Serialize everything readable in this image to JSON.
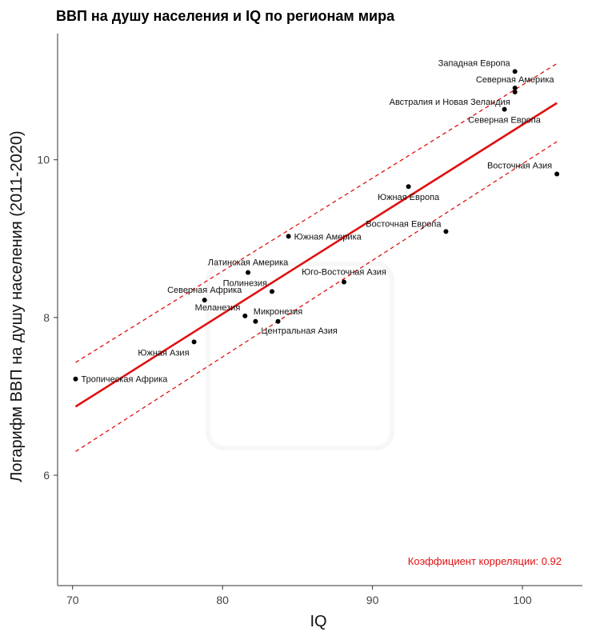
{
  "chart_data": {
    "type": "scatter",
    "title": "ВВП на душу населения и IQ по регионам мира",
    "xlabel": "IQ",
    "ylabel": "Логарифм ВВП на душу населения (2011-2020)",
    "xlim": [
      69,
      104
    ],
    "ylim": [
      4.6,
      11.6
    ],
    "x_ticks": [
      70,
      80,
      90,
      100
    ],
    "y_ticks": [
      6,
      8,
      10
    ],
    "grid": false,
    "points": [
      {
        "label": "Тропическая Африка",
        "x": 70.2,
        "y": 7.22,
        "anchor": "start"
      },
      {
        "label": "Южная Азия",
        "x": 78.1,
        "y": 7.69,
        "anchor": "end"
      },
      {
        "label": "Северная Африка",
        "x": 78.8,
        "y": 8.22,
        "anchor": "middle"
      },
      {
        "label": "Меланезия",
        "x": 81.5,
        "y": 8.02,
        "anchor": "end"
      },
      {
        "label": "Центральная Азия",
        "x": 82.2,
        "y": 7.95,
        "anchor": "start"
      },
      {
        "label": "Латинская Америка",
        "x": 81.7,
        "y": 8.57,
        "anchor": "middle"
      },
      {
        "label": "Полинезия",
        "x": 83.3,
        "y": 8.33,
        "anchor": "end"
      },
      {
        "label": "Микронезия",
        "x": 83.7,
        "y": 7.95,
        "anchor": "middle"
      },
      {
        "label": "Южная Америка",
        "x": 84.4,
        "y": 9.03,
        "anchor": "start"
      },
      {
        "label": "Юго-Восточная Азия",
        "x": 88.1,
        "y": 8.45,
        "anchor": "middle"
      },
      {
        "label": "Южная Европа",
        "x": 92.4,
        "y": 9.66,
        "anchor": "middle"
      },
      {
        "label": "Восточная Европа",
        "x": 94.9,
        "y": 9.09,
        "anchor": "end"
      },
      {
        "label": "Западная Европа",
        "x": 99.5,
        "y": 11.12,
        "anchor": "end"
      },
      {
        "label": "Северная Америка",
        "x": 99.5,
        "y": 10.91,
        "anchor": "middle"
      },
      {
        "label": "Австралия и Новая Зеландия",
        "x": 99.5,
        "y": 10.86,
        "anchor": "end"
      },
      {
        "label": "Северная Европа",
        "x": 98.8,
        "y": 10.64,
        "anchor": "middle"
      },
      {
        "label": "Восточная Азия",
        "x": 102.3,
        "y": 9.82,
        "anchor": "end"
      }
    ],
    "fit_line": {
      "x": [
        70.2,
        102.3
      ],
      "y": [
        6.87,
        10.72
      ],
      "color": "#e01010"
    },
    "confidence_upper": {
      "x": [
        70.2,
        102.3
      ],
      "y": [
        7.43,
        11.22
      ]
    },
    "confidence_lower": {
      "x": [
        70.2,
        102.3
      ],
      "y": [
        6.3,
        10.23
      ]
    },
    "annotation": "Коэффициент корреляции: 0.92",
    "annotation_color": "#e01010",
    "point_color": "#000000"
  }
}
